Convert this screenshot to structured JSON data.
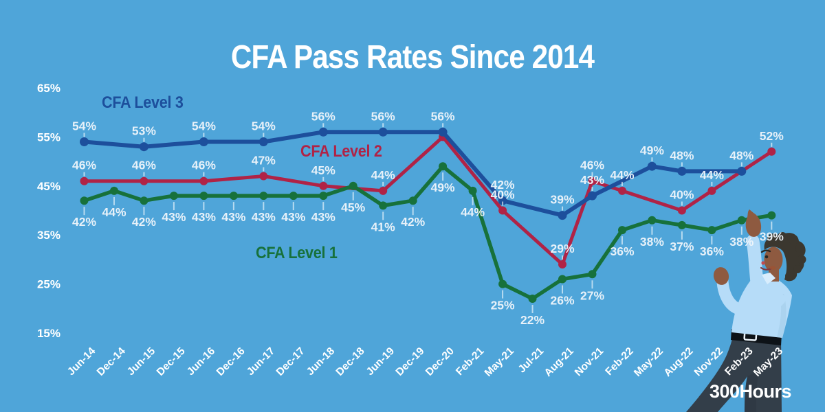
{
  "title": "CFA Pass Rates Since 2014",
  "watermark": "300Hours",
  "colors": {
    "background": "#4FA5D9",
    "title_text": "#FFFFFF",
    "axis_text": "#FFFFFF",
    "data_label_text": "#F0F6FB",
    "level1_green": "#17713B",
    "level2_red": "#B02346",
    "level3_blue": "#1D4F9C"
  },
  "legend": {
    "level3": "CFA Level 3",
    "level2": "CFA Level 2",
    "level1": "CFA Level 1"
  },
  "chart_data": {
    "type": "line",
    "title": "CFA Pass Rates Since 2014",
    "unit": "%",
    "grid": false,
    "legend_position": "inline-near-lines",
    "categories": [
      "Jun-14",
      "Dec-14",
      "Jun-15",
      "Dec-15",
      "Jun-16",
      "Dec-16",
      "Jun-17",
      "Dec-17",
      "Jun-18",
      "Dec-18",
      "Jun-19",
      "Dec-19",
      "Dec-20",
      "Feb-21",
      "May-21",
      "Jul-21",
      "Aug-21",
      "Nov-21",
      "Feb-22",
      "May-22",
      "Aug-22",
      "Nov-22",
      "Feb-23",
      "May-23"
    ],
    "y_ticks": [
      65,
      55,
      45,
      35,
      25,
      15
    ],
    "ylim": [
      15,
      65
    ],
    "series": [
      {
        "name": "CFA Level 1",
        "level": 1,
        "color": "#17713B",
        "label_side": "below",
        "values": [
          42,
          44,
          42,
          43,
          43,
          43,
          43,
          43,
          43,
          45,
          41,
          42,
          49,
          44,
          25,
          22,
          26,
          27,
          36,
          38,
          37,
          36,
          38,
          39
        ]
      },
      {
        "name": "CFA Level 2",
        "level": 2,
        "color": "#B02346",
        "label_side": "above",
        "unlabeled_indices": [
          12
        ],
        "values": [
          46,
          null,
          46,
          null,
          46,
          null,
          47,
          null,
          45,
          null,
          44,
          null,
          55,
          null,
          40,
          null,
          29,
          46,
          44,
          null,
          40,
          44,
          null,
          52
        ]
      },
      {
        "name": "CFA Level 3",
        "level": 3,
        "color": "#1D4F9C",
        "label_side": "above",
        "values": [
          54,
          null,
          53,
          null,
          54,
          null,
          54,
          null,
          56,
          null,
          56,
          null,
          56,
          null,
          42,
          null,
          39,
          43,
          null,
          49,
          48,
          null,
          48,
          null
        ]
      }
    ]
  }
}
